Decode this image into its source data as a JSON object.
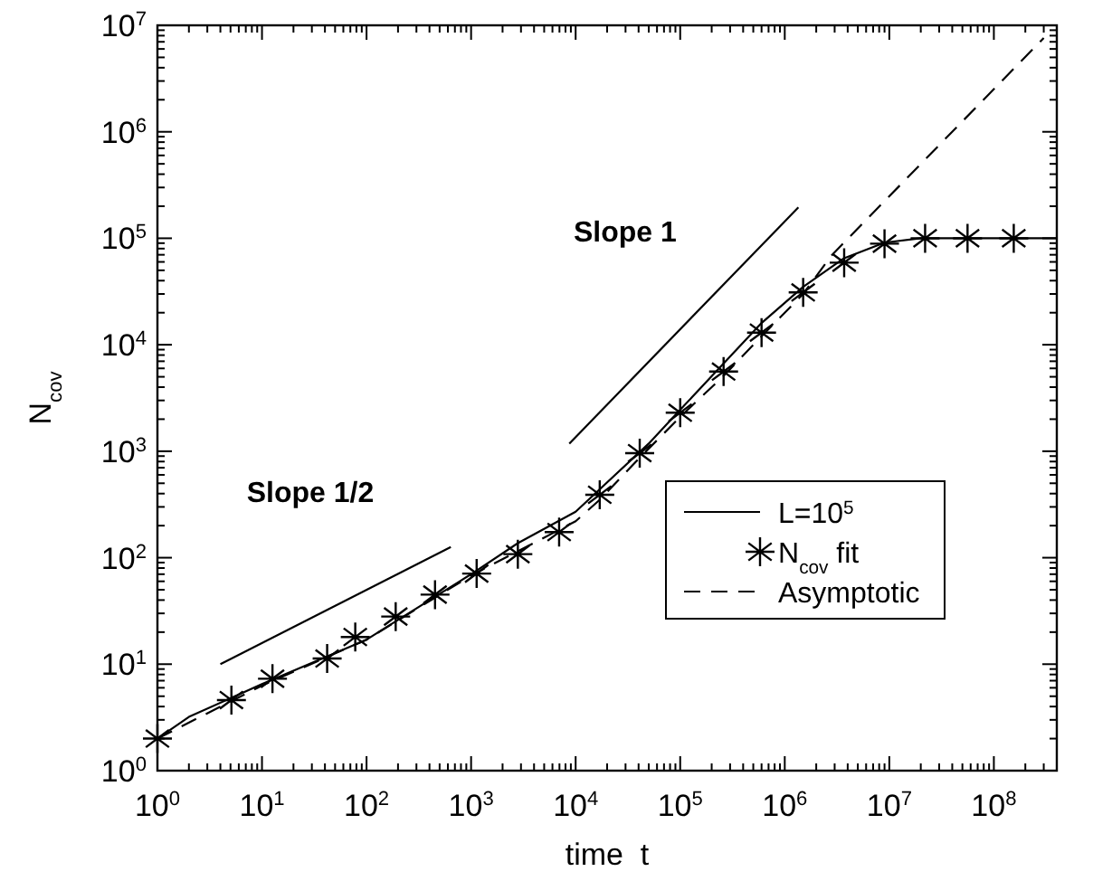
{
  "chart_data": {
    "type": "line",
    "xlabel": "time  t",
    "ylabel": "N$_{cov}$",
    "log": "xy",
    "legend": "right",
    "grid": false,
    "xlim": [
      1,
      400000000
    ],
    "ylim": [
      1,
      10000000
    ],
    "xticks": [
      {
        "value": 1,
        "label": "10$^{0}$"
      },
      {
        "value": 10,
        "label": "10$^{1}$"
      },
      {
        "value": 100,
        "label": "10$^{2}$"
      },
      {
        "value": 1000,
        "label": "10$^{3}$"
      },
      {
        "value": 10000,
        "label": "10$^{4}$"
      },
      {
        "value": 100000,
        "label": "10$^{5}$"
      },
      {
        "value": 1000000,
        "label": "10$^{6}$"
      },
      {
        "value": 10000000,
        "label": "10$^{7}$"
      },
      {
        "value": 100000000,
        "label": "10$^{8}$"
      }
    ],
    "yticks": [
      {
        "value": 1,
        "label": "10$^{0}$"
      },
      {
        "value": 10,
        "label": "10$^{1}$"
      },
      {
        "value": 100,
        "label": "10$^{2}$"
      },
      {
        "value": 1000,
        "label": "10$^{3}$"
      },
      {
        "value": 10000,
        "label": "10$^{4}$"
      },
      {
        "value": 100000,
        "label": "10$^{5}$"
      },
      {
        "value": 1000000,
        "label": "10$^{6}$"
      },
      {
        "value": 10000000,
        "label": "10$^{7}$"
      }
    ],
    "series": [
      {
        "name": "L=10$^{5}$",
        "type": "line",
        "color": "#000000",
        "line_style": "solid",
        "marker": "none",
        "x": [
          1,
          2,
          10,
          100,
          1000,
          2800,
          10000,
          50000,
          100000,
          600000,
          1500000,
          3700000,
          9000000,
          20000000,
          100000000,
          400000000
        ],
        "values": [
          2,
          3.2,
          6.5,
          17,
          70,
          137,
          270,
          1180,
          2450,
          16000,
          35000,
          65000,
          91000,
          100000,
          100000,
          100000
        ]
      },
      {
        "name": "N$_{cov}$ fit",
        "type": "scatter",
        "color": "#000000",
        "marker": "cross",
        "x": [
          1,
          5.1,
          12.6,
          42,
          78,
          190,
          452,
          1130,
          2800,
          6950,
          17000,
          41000,
          100000,
          260000,
          600000,
          1500000,
          3700000,
          9000000,
          22000000,
          56000000,
          155000000
        ],
        "values": [
          2,
          4.6,
          7.3,
          11.3,
          18,
          28,
          45,
          71,
          108,
          174,
          390,
          960,
          2300,
          5600,
          13000,
          31000,
          59000,
          89000,
          100000,
          100000,
          100000
        ]
      },
      {
        "name": "Asymptotic",
        "type": "line",
        "color": "#000000",
        "line_style": "dashed",
        "marker": "none",
        "x": [
          1,
          10,
          100,
          1000,
          10000,
          17000,
          41000,
          100000,
          260000,
          600000,
          1500000,
          2800000,
          300000000
        ],
        "values": [
          2,
          6.3,
          17,
          68,
          220,
          350,
          870,
          2100,
          5100,
          12000,
          30000,
          69000,
          7600000
        ]
      },
      {
        "type": "line",
        "color": "#000000",
        "line_style": "solid",
        "marker": "none",
        "x": [
          4,
          640
        ],
        "values": [
          10,
          126
        ]
      },
      {
        "type": "line",
        "color": "#000000",
        "line_style": "solid",
        "marker": "none",
        "x": [
          8700,
          1350000
        ],
        "values": [
          1180,
          195000
        ]
      }
    ],
    "annotations": [
      "Slope 1/2",
      "Slope 1"
    ]
  }
}
